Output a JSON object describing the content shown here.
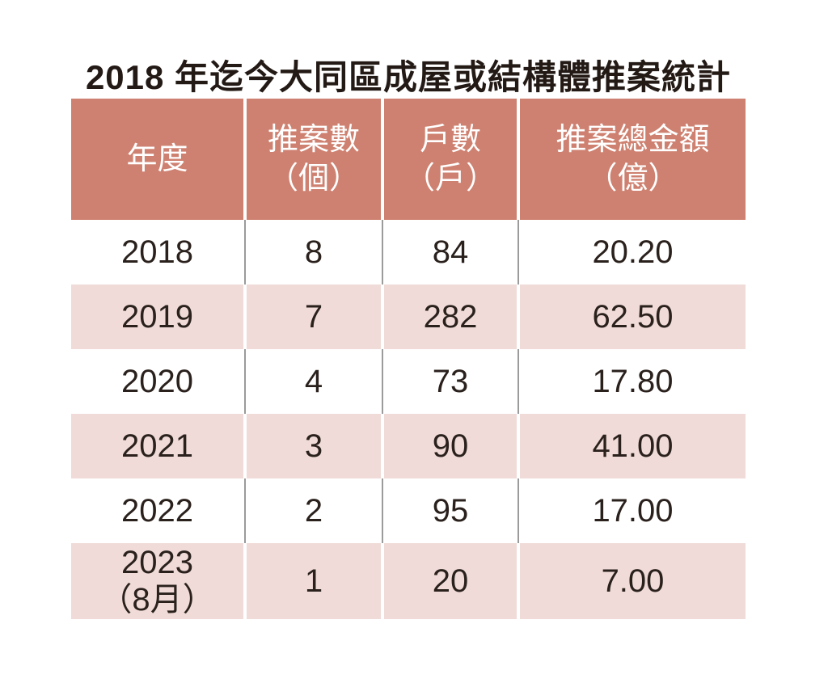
{
  "title": "2018 年迄今大同區成屋或結構體推案統計",
  "colors": {
    "header_bg": "#CE8170",
    "header_text": "#FFFFFF",
    "alt_row_bg": "#F0DBD8",
    "body_text": "#2A211D",
    "title_text": "#231A15",
    "divider_gray": "#9B9B9B",
    "page_bg": "#FFFFFF"
  },
  "table": {
    "headers": [
      {
        "line1": "年度",
        "line2": ""
      },
      {
        "line1": "推案數",
        "line2": "（個）"
      },
      {
        "line1": "戶數",
        "line2": "（戶）"
      },
      {
        "line1": "推案總金額",
        "line2": "（億）"
      }
    ],
    "rows": [
      {
        "year": "2018",
        "note": "",
        "cases": "8",
        "units": "84",
        "amount": "20.20"
      },
      {
        "year": "2019",
        "note": "",
        "cases": "7",
        "units": "282",
        "amount": "62.50"
      },
      {
        "year": "2020",
        "note": "",
        "cases": "4",
        "units": "73",
        "amount": "17.80"
      },
      {
        "year": "2021",
        "note": "",
        "cases": "3",
        "units": "90",
        "amount": "41.00"
      },
      {
        "year": "2022",
        "note": "",
        "cases": "2",
        "units": "95",
        "amount": "17.00"
      },
      {
        "year": "2023",
        "note": "（8月）",
        "cases": "1",
        "units": "20",
        "amount": "7.00"
      }
    ]
  },
  "chart_data": {
    "type": "table",
    "title": "2018 年迄今大同區成屋或結構體推案統計",
    "columns": [
      "年度",
      "推案數（個）",
      "戶數（戶）",
      "推案總金額（億）"
    ],
    "rows": [
      [
        "2018",
        8,
        84,
        20.2
      ],
      [
        "2019",
        7,
        282,
        62.5
      ],
      [
        "2020",
        4,
        73,
        17.8
      ],
      [
        "2021",
        3,
        90,
        41.0
      ],
      [
        "2022",
        2,
        95,
        17.0
      ],
      [
        "2023（8月）",
        1,
        20,
        7.0
      ]
    ],
    "layout": {
      "header_fill": "#CE8170",
      "alt_row_fill": "#F0DBD8",
      "zebra": "even rows white, odd rows pink, header terracotta"
    }
  }
}
